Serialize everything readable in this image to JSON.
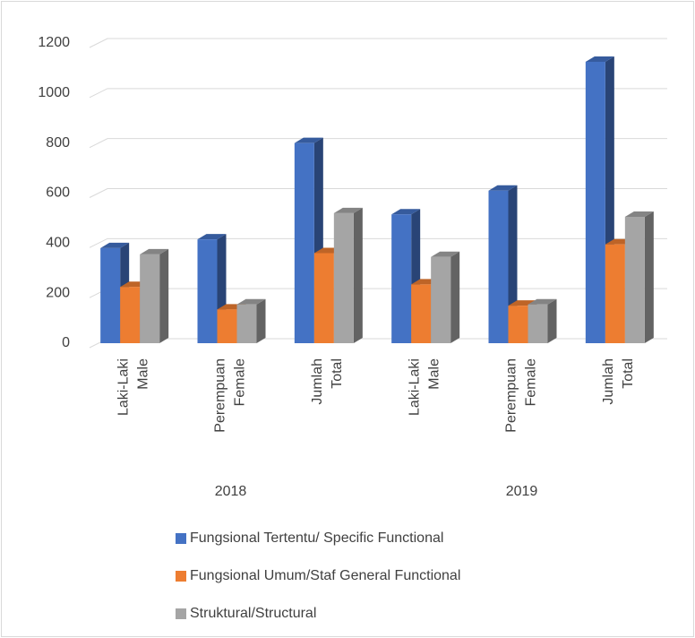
{
  "chart_data": {
    "type": "bar3d",
    "categories": [
      [
        "Laki-Laki",
        "Male"
      ],
      [
        "Perempuan",
        "Female"
      ],
      [
        "Jumlah",
        "Total"
      ],
      [
        "Laki-Laki",
        "Male"
      ],
      [
        "Perempuan",
        "Female"
      ],
      [
        "Jumlah",
        "Total"
      ]
    ],
    "x_groups": [
      "2018",
      "2019"
    ],
    "series": [
      {
        "name": "Fungsional Tertentu/ Specific Functional",
        "color": "#4472c4",
        "values": [
          380,
          415,
          800,
          515,
          610,
          1125
        ]
      },
      {
        "name": "Fungsional Umum/Staf General Functional",
        "color": "#ed7d31",
        "values": [
          225,
          135,
          360,
          235,
          150,
          395
        ]
      },
      {
        "name": "Struktural/Structural",
        "color": "#a5a5a5",
        "values": [
          355,
          155,
          520,
          345,
          155,
          505
        ]
      }
    ],
    "ylim": [
      0,
      1200
    ],
    "yticks": [
      0,
      200,
      400,
      600,
      800,
      1000,
      1200
    ],
    "grid": true,
    "legend": "bottom"
  }
}
